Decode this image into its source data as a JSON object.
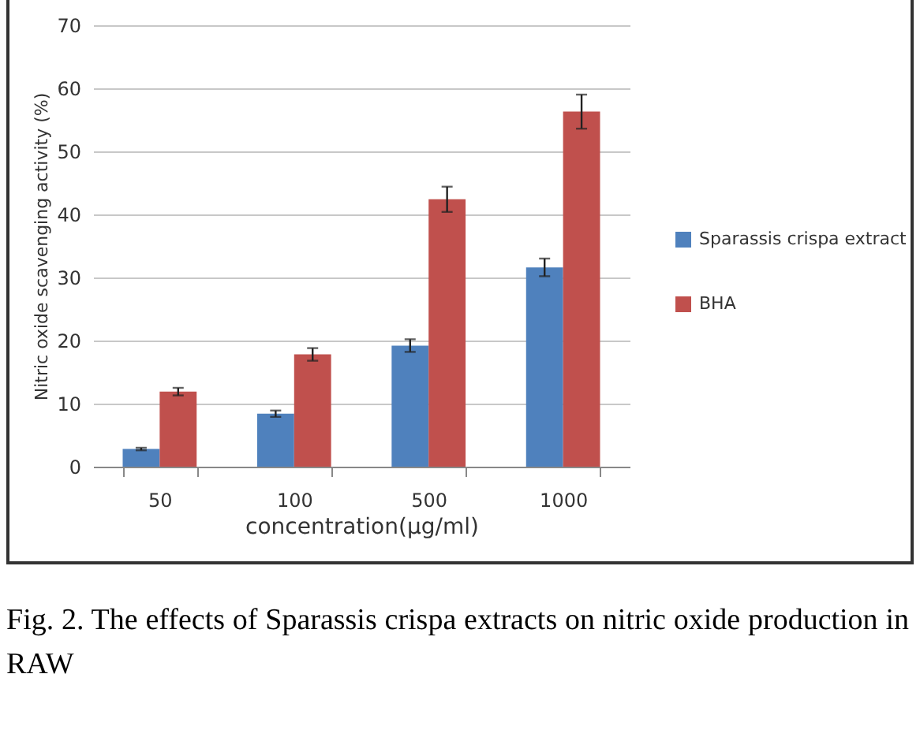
{
  "chart_data": {
    "type": "bar",
    "xlabel": "concentration(μg/ml)",
    "ylabel": "Nitric oxide scavenging activity (%)",
    "categories": [
      "50",
      "100",
      "500",
      "1000"
    ],
    "series": [
      {
        "name": "Sparassis crispa extract",
        "color": "#4f81bd",
        "values": [
          2.8,
          8.4,
          19.2,
          31.6
        ],
        "errors": [
          0.2,
          0.5,
          1.0,
          1.4
        ]
      },
      {
        "name": "BHA",
        "color": "#c0504d",
        "values": [
          11.9,
          17.8,
          42.4,
          56.3
        ],
        "errors": [
          0.6,
          1.0,
          2.0,
          2.7
        ]
      }
    ],
    "ylim": [
      0,
      70
    ],
    "yticks": [
      0,
      10,
      20,
      30,
      40,
      50,
      60,
      70
    ],
    "grid": "y",
    "legend": "right",
    "annotations": [
      "Fig. 2. The effects of Sparassis crispa extracts on nitric oxide production in RAW"
    ]
  }
}
